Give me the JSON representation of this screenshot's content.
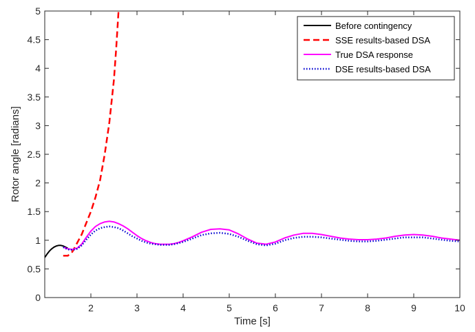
{
  "chart_data": {
    "type": "line",
    "title": "",
    "xlabel": "Time [s]",
    "ylabel": "Rotor angle [radians]",
    "xlim": [
      1,
      10
    ],
    "ylim": [
      0,
      5
    ],
    "xticks": [
      2,
      3,
      4,
      5,
      6,
      7,
      8,
      9,
      10
    ],
    "xtick_labels": [
      "2",
      "3",
      "4",
      "5",
      "6",
      "7",
      "8",
      "9",
      "10"
    ],
    "yticks": [
      0,
      0.5,
      1,
      1.5,
      2,
      2.5,
      3,
      3.5,
      4,
      4.5,
      5
    ],
    "ytick_labels": [
      "0",
      "0.5",
      "1",
      "1.5",
      "2",
      "2.5",
      "3",
      "3.5",
      "4",
      "4.5",
      "5"
    ],
    "grid": false,
    "legend_position": "top-right",
    "series": [
      {
        "name": "Before contingency",
        "color": "#000000",
        "style": "solid",
        "x": [
          1.0,
          1.05,
          1.1,
          1.15,
          1.2,
          1.25,
          1.3,
          1.35,
          1.4,
          1.45,
          1.5
        ],
        "y": [
          0.7,
          0.76,
          0.81,
          0.85,
          0.88,
          0.9,
          0.91,
          0.91,
          0.9,
          0.88,
          0.86
        ]
      },
      {
        "name": "SSE results-based DSA",
        "color": "#ff0000",
        "style": "dashed",
        "x": [
          1.4,
          1.5,
          1.6,
          1.7,
          1.8,
          1.9,
          2.0,
          2.1,
          2.2,
          2.3,
          2.4,
          2.5,
          2.55,
          2.6
        ],
        "y": [
          0.73,
          0.73,
          0.8,
          0.95,
          1.1,
          1.3,
          1.5,
          1.75,
          2.05,
          2.5,
          3.05,
          3.8,
          4.35,
          5.0
        ]
      },
      {
        "name": "True DSA response",
        "color": "#ff00ff",
        "style": "solid",
        "x": [
          1.4,
          1.5,
          1.6,
          1.7,
          1.8,
          1.9,
          2.0,
          2.1,
          2.2,
          2.3,
          2.4,
          2.5,
          2.6,
          2.7,
          2.8,
          2.9,
          3.0,
          3.1,
          3.2,
          3.3,
          3.4,
          3.5,
          3.6,
          3.7,
          3.8,
          3.9,
          4.0,
          4.2,
          4.4,
          4.6,
          4.8,
          5.0,
          5.2,
          5.4,
          5.6,
          5.8,
          6.0,
          6.2,
          6.4,
          6.6,
          6.8,
          7.0,
          7.2,
          7.4,
          7.6,
          7.8,
          8.0,
          8.2,
          8.4,
          8.6,
          8.8,
          9.0,
          9.2,
          9.4,
          9.6,
          9.8,
          10.0
        ],
        "y": [
          0.88,
          0.85,
          0.84,
          0.86,
          0.93,
          1.05,
          1.16,
          1.24,
          1.29,
          1.32,
          1.33,
          1.32,
          1.29,
          1.25,
          1.2,
          1.14,
          1.08,
          1.03,
          0.99,
          0.96,
          0.94,
          0.93,
          0.93,
          0.93,
          0.94,
          0.96,
          0.99,
          1.06,
          1.14,
          1.19,
          1.2,
          1.18,
          1.11,
          1.02,
          0.95,
          0.93,
          0.97,
          1.04,
          1.09,
          1.12,
          1.12,
          1.1,
          1.07,
          1.04,
          1.02,
          1.01,
          1.01,
          1.02,
          1.04,
          1.07,
          1.09,
          1.1,
          1.09,
          1.07,
          1.04,
          1.02,
          1.0
        ]
      },
      {
        "name": "DSE results-based DSA",
        "color": "#0000d0",
        "style": "dotted",
        "x": [
          1.4,
          1.5,
          1.6,
          1.7,
          1.8,
          1.9,
          2.0,
          2.1,
          2.2,
          2.3,
          2.4,
          2.5,
          2.6,
          2.7,
          2.8,
          2.9,
          3.0,
          3.1,
          3.2,
          3.3,
          3.4,
          3.5,
          3.6,
          3.7,
          3.8,
          3.9,
          4.0,
          4.2,
          4.4,
          4.6,
          4.8,
          5.0,
          5.2,
          5.4,
          5.6,
          5.8,
          6.0,
          6.2,
          6.4,
          6.6,
          6.8,
          7.0,
          7.2,
          7.4,
          7.6,
          7.8,
          8.0,
          8.2,
          8.4,
          8.6,
          8.8,
          9.0,
          9.2,
          9.4,
          9.6,
          9.8,
          10.0
        ],
        "y": [
          0.88,
          0.84,
          0.83,
          0.85,
          0.91,
          1.01,
          1.1,
          1.17,
          1.21,
          1.23,
          1.24,
          1.23,
          1.21,
          1.17,
          1.12,
          1.07,
          1.03,
          0.99,
          0.96,
          0.94,
          0.93,
          0.92,
          0.92,
          0.92,
          0.93,
          0.95,
          0.97,
          1.03,
          1.09,
          1.12,
          1.13,
          1.11,
          1.06,
          0.99,
          0.93,
          0.91,
          0.94,
          1.0,
          1.04,
          1.06,
          1.06,
          1.05,
          1.03,
          1.01,
          0.99,
          0.98,
          0.98,
          0.99,
          1.01,
          1.03,
          1.05,
          1.05,
          1.05,
          1.03,
          1.01,
          0.99,
          0.98
        ]
      }
    ]
  }
}
